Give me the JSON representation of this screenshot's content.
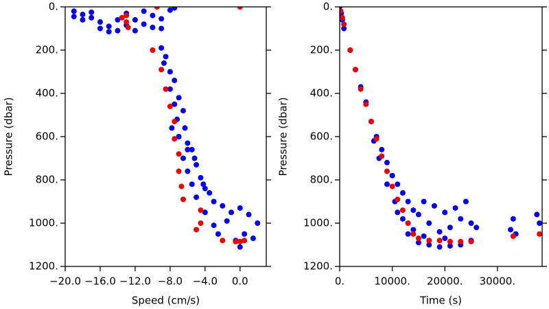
{
  "chart_data": [
    {
      "type": "scatter",
      "y_inverted": true,
      "xlabel": "Speed (cm/s)",
      "ylabel": "Pressure (dbar)",
      "xlim": [
        -20,
        3
      ],
      "ylim": [
        0,
        1200
      ],
      "xticks": [
        {
          "value": -20,
          "label": "−20.0"
        },
        {
          "value": -16,
          "label": "−16.0"
        },
        {
          "value": -12,
          "label": "−12.0"
        },
        {
          "value": -8,
          "label": "−8.0"
        },
        {
          "value": -4,
          "label": "−4.0"
        },
        {
          "value": 0,
          "label": "0.0"
        }
      ],
      "yticks": [
        {
          "value": 0,
          "label": "0."
        },
        {
          "value": 200,
          "label": "200."
        },
        {
          "value": 400,
          "label": "400."
        },
        {
          "value": 600,
          "label": "600."
        },
        {
          "value": 800,
          "label": "800."
        },
        {
          "value": 1000,
          "label": "1000."
        },
        {
          "value": 1200,
          "label": "1200."
        }
      ],
      "series": [
        {
          "color": "#0000ee",
          "x": [
            -19,
            -18,
            -17,
            -16,
            -15,
            -14,
            -13,
            -12,
            -11,
            -10,
            -9,
            -8,
            -7.5,
            -15,
            -17,
            -12,
            -11,
            -14,
            -16,
            -18,
            -13,
            -10,
            -9,
            -19,
            -9,
            -8.5,
            -8.7,
            -8,
            -7.5,
            -8,
            -7,
            -7.5,
            -6.5,
            -7.2,
            -6.3,
            -7,
            -6,
            -5.5,
            -6.5,
            -5,
            -6,
            -4.5,
            -5.5,
            -4,
            -3.5,
            -5,
            -3,
            -2,
            -4,
            -1,
            0,
            1,
            2,
            -1.5,
            -3,
            0.5,
            -0.5,
            1.5,
            0,
            -2.5,
            -6,
            -7.8,
            -5.2,
            -4.2
          ],
          "values": [
            20,
            35,
            50,
            70,
            90,
            110,
            30,
            60,
            80,
            40,
            100,
            15,
            5,
            115,
            25,
            110,
            20,
            60,
            100,
            60,
            85,
            95,
            55,
            45,
            190,
            230,
            260,
            300,
            340,
            380,
            420,
            450,
            480,
            520,
            560,
            600,
            630,
            660,
            700,
            730,
            760,
            790,
            820,
            840,
            860,
            880,
            900,
            920,
            950,
            950,
            930,
            960,
            1000,
            990,
            1010,
            1050,
            1080,
            1070,
            1110,
            1050,
            660,
            560,
            700,
            820
          ]
        },
        {
          "color": "#ee0000",
          "x": [
            -10,
            -9,
            -8.5,
            -8,
            -7.5,
            -7.5,
            -7,
            -7,
            -6.7,
            -6.5,
            -4.5,
            -4.5,
            -5,
            -2,
            -0.5,
            0,
            0.5,
            -13.5,
            -13,
            -13,
            -12.8,
            0,
            -9.5
          ],
          "values": [
            200,
            290,
            380,
            460,
            530,
            610,
            680,
            760,
            830,
            890,
            940,
            1000,
            1030,
            1080,
            1085,
            1085,
            1080,
            50,
            40,
            70,
            95,
            0,
            0
          ]
        }
      ]
    },
    {
      "type": "scatter",
      "y_inverted": true,
      "xlabel": "Time (s)",
      "ylabel": "Pressure (dbar)",
      "xlim": [
        0,
        38500
      ],
      "ylim": [
        0,
        1200
      ],
      "xticks": [
        {
          "value": 0,
          "label": "0."
        },
        {
          "value": 10000,
          "label": "10000."
        },
        {
          "value": 20000,
          "label": "20000."
        },
        {
          "value": 30000,
          "label": "30000."
        }
      ],
      "yticks": [
        {
          "value": 0,
          "label": "0."
        },
        {
          "value": 200,
          "label": "200."
        },
        {
          "value": 400,
          "label": "400."
        },
        {
          "value": 600,
          "label": "600."
        },
        {
          "value": 800,
          "label": "800."
        },
        {
          "value": 1000,
          "label": "1000."
        },
        {
          "value": 1200,
          "label": "1200."
        }
      ],
      "series": [
        {
          "color": "#0000ee",
          "x": [
            0,
            300,
            500,
            800,
            2000,
            3000,
            4000,
            5000,
            6000,
            7000,
            8000,
            9000,
            10000,
            11000,
            12000,
            13000,
            14000,
            15000,
            16000,
            18000,
            20000,
            22000,
            24000,
            25000,
            13000,
            15000,
            17000,
            19000,
            21000,
            23000,
            25000,
            17000,
            19000,
            21000,
            23000,
            26000,
            33000,
            32500,
            33500,
            37500,
            38000,
            11000,
            9000,
            7500,
            6500,
            12000,
            14000,
            10500,
            16000,
            20000
          ],
          "values": [
            0,
            30,
            60,
            100,
            200,
            290,
            370,
            440,
            530,
            600,
            660,
            720,
            780,
            820,
            860,
            900,
            940,
            960,
            900,
            920,
            950,
            930,
            900,
            1000,
            1050,
            1090,
            1100,
            1110,
            1105,
            1100,
            1080,
            1000,
            1040,
            1020,
            980,
            1020,
            980,
            1030,
            1050,
            960,
            1000,
            950,
            820,
            700,
            620,
            980,
            1030,
            900,
            1060,
            1070
          ]
        },
        {
          "color": "#ee0000",
          "x": [
            200,
            500,
            800,
            2000,
            3000,
            4000,
            5000,
            6000,
            7000,
            8000,
            9000,
            10000,
            11000,
            12000,
            13000,
            14000,
            15000,
            17000,
            19000,
            21000,
            23000,
            25000,
            33000,
            38000
          ],
          "values": [
            20,
            50,
            80,
            200,
            290,
            380,
            450,
            530,
            610,
            690,
            760,
            830,
            890,
            940,
            1000,
            1050,
            1070,
            1080,
            1080,
            1085,
            1085,
            1085,
            1060,
            1050
          ]
        }
      ]
    }
  ]
}
